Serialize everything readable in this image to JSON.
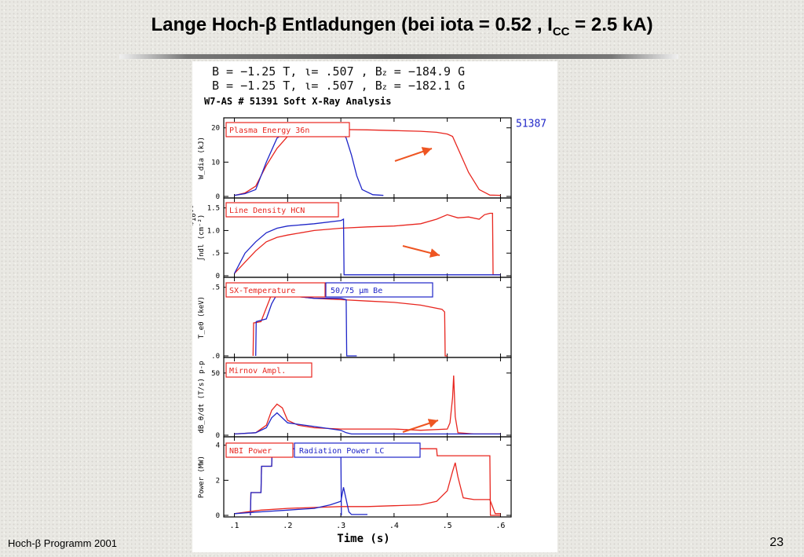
{
  "slide": {
    "title_main": "Lange Hoch-β Entladungen (bei iota = 0.52 , I",
    "title_sub": "CC",
    "title_tail": " = 2.5 kA)",
    "footer_left": "Hoch-β Programm 2001",
    "page_number": "23"
  },
  "figure": {
    "header_line1": "B = −1.25  T,  ι= .507   ,  B",
    "header_line1_sub": "z",
    "header_line1_tail": " = −184.9 G",
    "header_line2": "B = −1.25  T,  ι= .507   ,  B",
    "header_line2_sub": "z",
    "header_line2_tail": " = −182.1 G",
    "analysis_title": "W7-AS # 51391  Soft X-Ray Analysis",
    "ref_shot": "51387",
    "xlabel": "Time (s)"
  },
  "colors": {
    "shot_51391": "#e8261f",
    "shot_51387": "#1f26c8",
    "arrow": "#ee5522"
  },
  "chart_data": [
    {
      "type": "line",
      "panel_label": "Plasma Energy  36n",
      "ylabel": "W_dia (kJ)",
      "ylim": [
        0,
        22
      ],
      "yticks": [
        "0",
        "10",
        "20"
      ],
      "ytick_values": [
        0,
        10,
        20
      ],
      "xlim": [
        0.08,
        0.62
      ],
      "series": [
        {
          "name": "51391",
          "color": "red",
          "x": [
            0.1,
            0.12,
            0.14,
            0.16,
            0.18,
            0.2,
            0.25,
            0.3,
            0.35,
            0.4,
            0.45,
            0.48,
            0.5,
            0.51,
            0.52,
            0.54,
            0.56,
            0.58,
            0.6
          ],
          "y": [
            0.3,
            1,
            3,
            9,
            14,
            17.5,
            19,
            19.5,
            19.4,
            19.2,
            19,
            18.7,
            18.2,
            17.5,
            14,
            7,
            2,
            0.4,
            0.3
          ]
        },
        {
          "name": "51387",
          "color": "blue",
          "x": [
            0.1,
            0.12,
            0.14,
            0.16,
            0.18,
            0.2,
            0.25,
            0.3,
            0.31,
            0.32,
            0.33,
            0.34,
            0.36,
            0.38
          ],
          "y": [
            0.3,
            0.8,
            2,
            10,
            17,
            19,
            19.6,
            19.6,
            17,
            12,
            6,
            2,
            0.5,
            0.3
          ]
        }
      ]
    },
    {
      "type": "line",
      "panel_label": "Line Density HCN",
      "ylabel": "∫ndl (cm⁻²)",
      "scale_label": "*10¹⁸",
      "ylim": [
        0,
        1.65
      ],
      "yticks": [
        "1.5",
        "1.0",
        ".5",
        "0"
      ],
      "ytick_values": [
        1.5,
        1.0,
        0.5,
        0
      ],
      "xlim": [
        0.08,
        0.62
      ],
      "series": [
        {
          "name": "51391",
          "color": "red",
          "x": [
            0.1,
            0.12,
            0.14,
            0.16,
            0.18,
            0.2,
            0.25,
            0.3,
            0.35,
            0.4,
            0.45,
            0.48,
            0.5,
            0.52,
            0.54,
            0.56,
            0.57,
            0.58,
            0.585,
            0.586,
            0.6
          ],
          "y": [
            0.05,
            0.3,
            0.55,
            0.75,
            0.85,
            0.9,
            1.0,
            1.05,
            1.08,
            1.1,
            1.15,
            1.25,
            1.35,
            1.28,
            1.3,
            1.25,
            1.35,
            1.38,
            1.38,
            0.02,
            0.02
          ]
        },
        {
          "name": "51387",
          "color": "blue",
          "x": [
            0.1,
            0.12,
            0.14,
            0.16,
            0.18,
            0.2,
            0.25,
            0.3,
            0.305,
            0.306,
            0.35,
            0.4,
            0.45,
            0.5,
            0.55,
            0.6
          ],
          "y": [
            0.05,
            0.5,
            0.75,
            0.95,
            1.05,
            1.1,
            1.15,
            1.22,
            1.25,
            0.02,
            0.02,
            0.02,
            0.02,
            0.02,
            0.02,
            0.02
          ]
        }
      ]
    },
    {
      "type": "line",
      "panel_label": "SX-Temperature",
      "panel_label_2": "50/75  μm Be",
      "ylabel": "T_e0 (keV)",
      "ylim": [
        0,
        0.55
      ],
      "yticks": [
        ".5",
        ".0"
      ],
      "ytick_values": [
        0.5,
        0
      ],
      "xlim": [
        0.08,
        0.62
      ],
      "series": [
        {
          "name": "51391",
          "color": "red",
          "x": [
            0.135,
            0.136,
            0.15,
            0.16,
            0.17,
            0.18,
            0.2,
            0.25,
            0.3,
            0.35,
            0.4,
            0.45,
            0.49,
            0.495,
            0.496,
            0.5
          ],
          "y": [
            0,
            0.24,
            0.25,
            0.35,
            0.45,
            0.47,
            0.44,
            0.42,
            0.41,
            0.4,
            0.39,
            0.37,
            0.34,
            0.32,
            0.0,
            0.0
          ]
        },
        {
          "name": "51387",
          "color": "blue",
          "x": [
            0.14,
            0.141,
            0.16,
            0.17,
            0.18,
            0.2,
            0.25,
            0.3,
            0.31,
            0.311,
            0.33
          ],
          "y": [
            0,
            0.25,
            0.27,
            0.38,
            0.45,
            0.44,
            0.42,
            0.42,
            0.41,
            0.0,
            0.0
          ]
        }
      ]
    },
    {
      "type": "line",
      "panel_label": "Mirnov Ampl.",
      "ylabel": "dB_θ/dt (T/s) p-p",
      "ylim": [
        0,
        60
      ],
      "yticks": [
        "50",
        "0"
      ],
      "ytick_values": [
        50,
        0
      ],
      "xlim": [
        0.08,
        0.62
      ],
      "series": [
        {
          "name": "51391",
          "color": "red",
          "x": [
            0.1,
            0.14,
            0.16,
            0.17,
            0.18,
            0.19,
            0.2,
            0.22,
            0.25,
            0.3,
            0.35,
            0.4,
            0.45,
            0.5,
            0.505,
            0.51,
            0.512,
            0.515,
            0.52,
            0.55,
            0.6
          ],
          "y": [
            1,
            2,
            8,
            20,
            25,
            22,
            12,
            8,
            6,
            5,
            5,
            5,
            4,
            5,
            10,
            30,
            48,
            15,
            2,
            1,
            1
          ]
        },
        {
          "name": "51387",
          "color": "blue",
          "x": [
            0.1,
            0.14,
            0.16,
            0.17,
            0.18,
            0.2,
            0.25,
            0.3,
            0.31,
            0.32,
            0.4,
            0.5,
            0.6
          ],
          "y": [
            1,
            2,
            6,
            14,
            18,
            10,
            7,
            4,
            2,
            1,
            1,
            1,
            1
          ]
        }
      ]
    },
    {
      "type": "line",
      "panel_label": "NBI Power",
      "panel_label_2": "Radiation Power LC",
      "ylabel": "Power (MW)",
      "ylim": [
        0,
        4.3
      ],
      "yticks": [
        "4",
        "2",
        "0"
      ],
      "ytick_values": [
        4,
        2,
        0
      ],
      "xlim": [
        0.08,
        0.62
      ],
      "xticks": [
        ".1",
        ".2",
        ".3",
        ".4",
        ".5",
        ".6"
      ],
      "xtick_values": [
        0.1,
        0.2,
        0.3,
        0.4,
        0.5,
        0.6
      ],
      "series": [
        {
          "name": "NBI 51391",
          "color": "red",
          "x": [
            0.13,
            0.131,
            0.15,
            0.151,
            0.17,
            0.171,
            0.48,
            0.481,
            0.58,
            0.581,
            0.6
          ],
          "y": [
            0,
            1.3,
            1.3,
            2.8,
            2.8,
            3.8,
            3.8,
            3.4,
            3.4,
            0.0,
            0.0
          ]
        },
        {
          "name": "NBI 51387",
          "color": "blue",
          "x": [
            0.13,
            0.131,
            0.15,
            0.151,
            0.17,
            0.171,
            0.3,
            0.301
          ],
          "y": [
            0,
            1.3,
            1.3,
            2.8,
            2.8,
            3.8,
            3.8,
            0.0
          ]
        },
        {
          "name": "Radiation 51391",
          "color": "red",
          "x": [
            0.1,
            0.15,
            0.2,
            0.3,
            0.35,
            0.4,
            0.45,
            0.48,
            0.5,
            0.51,
            0.515,
            0.52,
            0.53,
            0.55,
            0.58,
            0.59,
            0.6
          ],
          "y": [
            0.1,
            0.3,
            0.4,
            0.5,
            0.5,
            0.55,
            0.6,
            0.8,
            1.4,
            2.5,
            3.0,
            2.2,
            1.0,
            0.9,
            0.9,
            0.1,
            0.1
          ]
        },
        {
          "name": "Radiation 51387",
          "color": "blue",
          "x": [
            0.1,
            0.15,
            0.2,
            0.25,
            0.28,
            0.3,
            0.305,
            0.31,
            0.315,
            0.32,
            0.35
          ],
          "y": [
            0.1,
            0.2,
            0.3,
            0.4,
            0.6,
            0.8,
            1.6,
            0.9,
            0.2,
            0.05,
            0.05
          ]
        }
      ]
    }
  ]
}
